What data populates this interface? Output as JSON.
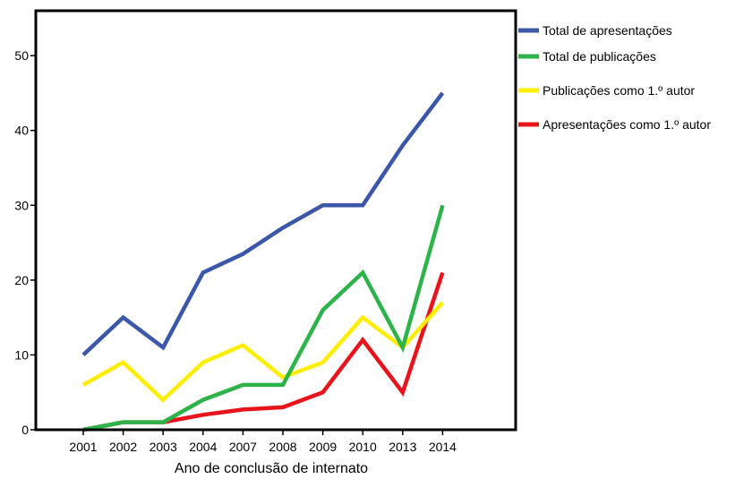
{
  "chart_data": {
    "type": "line",
    "title": "",
    "xlabel": "Ano de conclusão de internato",
    "ylabel": "",
    "ylim": [
      0,
      56
    ],
    "yticks": [
      0,
      10,
      20,
      30,
      40,
      50
    ],
    "categories": [
      "2001",
      "2002",
      "2003",
      "2004",
      "2007",
      "2008",
      "2009",
      "2010",
      "2013",
      "2014"
    ],
    "legend_position": "right",
    "grid": false,
    "series": [
      {
        "name": "Total de apresentações",
        "color": "#3a57a8",
        "values": [
          10,
          15,
          11,
          21,
          23.5,
          27,
          30,
          30,
          38,
          45
        ]
      },
      {
        "name": "Total de publicações",
        "color": "#2db34a",
        "values": [
          0,
          1,
          1,
          4,
          6,
          6,
          16,
          21,
          11,
          30
        ]
      },
      {
        "name": "Publicações como 1.º autor",
        "color": "#ffee00",
        "values": [
          6,
          9,
          4,
          9,
          11.3,
          7,
          9,
          15,
          11,
          17
        ]
      },
      {
        "name": "Apresentações como 1.º autor",
        "color": "#e8141b",
        "values": [
          0,
          1,
          1,
          2,
          2.7,
          3,
          5,
          12,
          5,
          21
        ]
      }
    ]
  }
}
